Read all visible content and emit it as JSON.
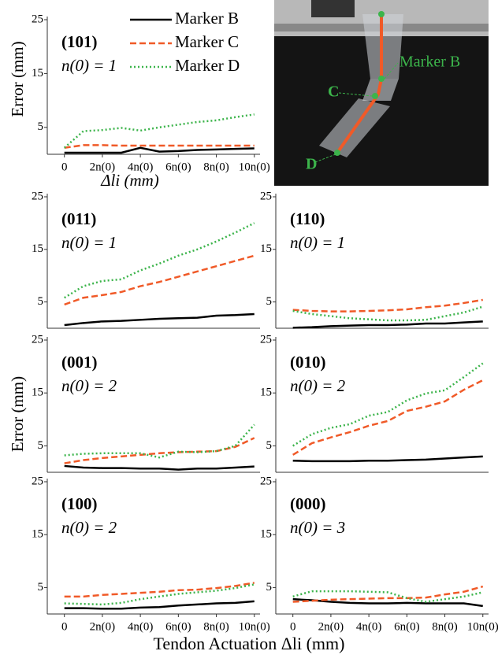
{
  "chart_data": [
    {
      "type": "line",
      "title": "(101)",
      "subtitle": "n(0) = 1",
      "ylabel": "Error (mm)",
      "xlabel": "Δli (mm)",
      "legend": "upper right",
      "grid": false,
      "x": [
        0,
        1,
        2,
        3,
        4,
        5,
        6,
        7,
        8,
        9,
        10
      ],
      "xlim": [
        -0.9,
        10.3
      ],
      "ylim": [
        0,
        25
      ],
      "yticks": [
        5,
        15,
        25
      ],
      "xticks": [
        0,
        {
          "value": 2,
          "label": "2n(0)"
        },
        {
          "value": 4,
          "label": "4n(0)"
        },
        {
          "value": 6,
          "label": "6n(0)"
        },
        {
          "value": 8,
          "label": "8n(0)"
        },
        {
          "value": 10,
          "label": "10n(0)"
        }
      ],
      "series": [
        {
          "name": "Marker B",
          "color": "#000000",
          "linestyle": "solid",
          "values": [
            0.3,
            0.3,
            0.3,
            0.3,
            1.2,
            0.5,
            0.6,
            0.8,
            0.9,
            1.0,
            1.1
          ]
        },
        {
          "name": "Marker C",
          "color": "#f05a28",
          "linestyle": "dashed",
          "values": [
            1.2,
            1.7,
            1.7,
            1.6,
            1.6,
            1.6,
            1.6,
            1.6,
            1.6,
            1.6,
            1.6
          ]
        },
        {
          "name": "Marker D",
          "color": "#3cb44b",
          "linestyle": "dotted",
          "values": [
            1.2,
            4.3,
            4.5,
            4.9,
            4.4,
            5.0,
            5.5,
            6.0,
            6.3,
            6.9,
            7.4
          ]
        }
      ]
    },
    {
      "type": "line",
      "title": "(011)",
      "subtitle": "n(0) = 1",
      "grid": false,
      "x": [
        0,
        1,
        2,
        3,
        4,
        5,
        6,
        7,
        8,
        9,
        10
      ],
      "xlim": [
        -0.9,
        10.3
      ],
      "ylim": [
        0,
        25
      ],
      "yticks": [
        5,
        15,
        25
      ],
      "series": [
        {
          "color": "#000000",
          "linestyle": "solid",
          "values": [
            0.6,
            1.0,
            1.3,
            1.4,
            1.6,
            1.8,
            1.9,
            2.0,
            2.4,
            2.5,
            2.7
          ]
        },
        {
          "color": "#f05a28",
          "linestyle": "dashed",
          "values": [
            4.5,
            5.8,
            6.3,
            6.9,
            8.0,
            8.8,
            9.8,
            10.8,
            11.8,
            12.8,
            13.8
          ]
        },
        {
          "color": "#3cb44b",
          "linestyle": "dotted",
          "values": [
            5.8,
            8.0,
            9.0,
            9.3,
            11.0,
            12.3,
            13.8,
            15.0,
            16.5,
            18.2,
            20.0
          ]
        }
      ]
    },
    {
      "type": "line",
      "title": "(110)",
      "subtitle": "n(0) = 1",
      "grid": false,
      "x": [
        0,
        1,
        2,
        3,
        4,
        5,
        6,
        7,
        8,
        9,
        10
      ],
      "xlim": [
        -0.9,
        10.3
      ],
      "ylim": [
        0,
        25
      ],
      "yticks": [
        5,
        15,
        25
      ],
      "series": [
        {
          "color": "#000000",
          "linestyle": "solid",
          "values": [
            0.1,
            0.2,
            0.4,
            0.5,
            0.6,
            0.6,
            0.7,
            0.9,
            0.9,
            1.1,
            1.3
          ]
        },
        {
          "color": "#f05a28",
          "linestyle": "dashed",
          "values": [
            3.5,
            3.3,
            3.2,
            3.2,
            3.3,
            3.4,
            3.6,
            4.0,
            4.3,
            4.8,
            5.4
          ]
        },
        {
          "color": "#3cb44b",
          "linestyle": "dotted",
          "values": [
            3.3,
            2.7,
            2.3,
            1.9,
            1.7,
            1.5,
            1.5,
            1.6,
            2.3,
            3.0,
            4.1
          ]
        }
      ]
    },
    {
      "type": "line",
      "title": "(001)",
      "subtitle": "n(0) = 2",
      "ylabel": "Error (mm)",
      "grid": false,
      "x": [
        0,
        1,
        2,
        3,
        4,
        5,
        6,
        7,
        8,
        9,
        10
      ],
      "xlim": [
        -0.9,
        10.3
      ],
      "ylim": [
        0,
        25
      ],
      "yticks": [
        5,
        15,
        25
      ],
      "series": [
        {
          "color": "#000000",
          "linestyle": "solid",
          "values": [
            1.2,
            0.9,
            0.8,
            0.8,
            0.7,
            0.7,
            0.5,
            0.7,
            0.7,
            0.9,
            1.1
          ]
        },
        {
          "color": "#f05a28",
          "linestyle": "dashed",
          "values": [
            1.7,
            2.3,
            2.7,
            3.0,
            3.3,
            3.6,
            3.8,
            3.9,
            4.0,
            4.8,
            6.5
          ]
        },
        {
          "color": "#3cb44b",
          "linestyle": "dotted",
          "values": [
            3.2,
            3.5,
            3.6,
            3.6,
            3.6,
            2.8,
            3.9,
            3.8,
            4.0,
            5.0,
            9.0
          ]
        }
      ]
    },
    {
      "type": "line",
      "title": "(010)",
      "subtitle": "n(0) = 2",
      "grid": false,
      "x": [
        0,
        1,
        2,
        3,
        4,
        5,
        6,
        7,
        8,
        9,
        10
      ],
      "xlim": [
        -0.9,
        10.3
      ],
      "ylim": [
        0,
        25
      ],
      "yticks": [
        5,
        15,
        25
      ],
      "series": [
        {
          "color": "#000000",
          "linestyle": "solid",
          "values": [
            2.2,
            2.1,
            2.1,
            2.1,
            2.2,
            2.2,
            2.3,
            2.4,
            2.6,
            2.8,
            3.0
          ]
        },
        {
          "color": "#f05a28",
          "linestyle": "dashed",
          "values": [
            3.3,
            5.5,
            6.6,
            7.6,
            8.8,
            9.7,
            11.6,
            12.4,
            13.4,
            15.6,
            17.4
          ]
        },
        {
          "color": "#3cb44b",
          "linestyle": "dotted",
          "values": [
            5.0,
            7.2,
            8.4,
            9.1,
            10.7,
            11.4,
            13.6,
            14.9,
            15.5,
            18.0,
            20.6
          ]
        }
      ]
    },
    {
      "type": "line",
      "title": "(100)",
      "subtitle": "n(0) = 2",
      "grid": false,
      "x": [
        0,
        1,
        2,
        3,
        4,
        5,
        6,
        7,
        8,
        9,
        10
      ],
      "xlim": [
        -0.9,
        10.3
      ],
      "ylim": [
        0,
        25
      ],
      "yticks": [
        5,
        15,
        25
      ],
      "xticks": [
        0,
        {
          "value": 2,
          "label": "2n(0)"
        },
        {
          "value": 4,
          "label": "4n(0)"
        },
        {
          "value": 6,
          "label": "6n(0)"
        },
        {
          "value": 8,
          "label": "8n(0)"
        },
        {
          "value": 10,
          "label": "10n(0)"
        }
      ],
      "series": [
        {
          "color": "#000000",
          "linestyle": "solid",
          "values": [
            1.1,
            1.1,
            1.0,
            1.0,
            1.2,
            1.3,
            1.6,
            1.8,
            2.0,
            2.1,
            2.4
          ]
        },
        {
          "color": "#f05a28",
          "linestyle": "dashed",
          "values": [
            3.3,
            3.3,
            3.6,
            3.8,
            4.0,
            4.2,
            4.5,
            4.6,
            4.9,
            5.3,
            5.9
          ]
        },
        {
          "color": "#3cb44b",
          "linestyle": "dotted",
          "values": [
            2.0,
            1.9,
            1.8,
            2.1,
            2.8,
            3.3,
            3.8,
            4.1,
            4.4,
            4.9,
            5.6
          ]
        }
      ]
    },
    {
      "type": "line",
      "title": "(000)",
      "subtitle": "n(0) = 3",
      "grid": false,
      "x": [
        0,
        1,
        2,
        3,
        4,
        5,
        6,
        7,
        8,
        9,
        10
      ],
      "xlim": [
        -0.9,
        10.3
      ],
      "ylim": [
        0,
        25
      ],
      "yticks": [
        5,
        15,
        25
      ],
      "xticks": [
        0,
        {
          "value": 2,
          "label": "2n(0)"
        },
        {
          "value": 4,
          "label": "4n(0)"
        },
        {
          "value": 6,
          "label": "6n(0)"
        },
        {
          "value": 8,
          "label": "8n(0)"
        },
        {
          "value": 10,
          "label": "10n(0)"
        }
      ],
      "series": [
        {
          "color": "#000000",
          "linestyle": "solid",
          "values": [
            2.8,
            2.6,
            2.3,
            2.1,
            2.0,
            2.0,
            2.1,
            2.0,
            2.0,
            2.0,
            1.5
          ]
        },
        {
          "color": "#f05a28",
          "linestyle": "dashed",
          "values": [
            2.3,
            2.5,
            2.7,
            2.8,
            2.9,
            3.0,
            3.0,
            3.1,
            3.7,
            4.2,
            5.2
          ]
        },
        {
          "color": "#3cb44b",
          "linestyle": "dotted",
          "values": [
            3.3,
            4.3,
            4.3,
            4.3,
            4.2,
            4.1,
            3.0,
            2.3,
            2.8,
            3.3,
            4.1
          ]
        }
      ]
    }
  ],
  "shared_xlabel": "Tendon Actuation Δli (mm)",
  "photo": {
    "labels": [
      "Marker B",
      "C",
      "D"
    ]
  }
}
